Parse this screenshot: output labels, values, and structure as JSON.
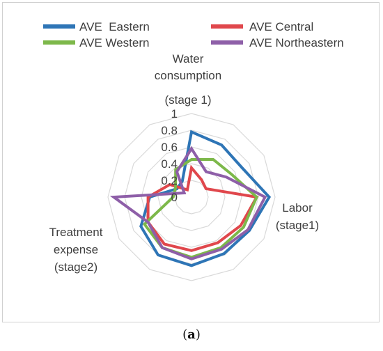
{
  "chart_data": {
    "type": "radar",
    "title": "",
    "categories": [
      "Water consumption (stage 1)",
      "",
      "",
      "Labor (stage1)",
      "",
      "",
      "",
      "",
      "",
      "Treatment expense (stage2)",
      "",
      ""
    ],
    "axis_labels": {
      "top": [
        "Water",
        "consumption",
        "(stage 1)"
      ],
      "right": [
        "Labor",
        "(stage1)"
      ],
      "left": [
        "Treatment",
        "expense",
        "(stage2)"
      ]
    },
    "rlim": [
      0,
      1
    ],
    "r_ticks": [
      "0",
      "0.2",
      "0.4",
      "0.6",
      "0.8",
      "1"
    ],
    "r_tick_values": [
      0,
      0.2,
      0.4,
      0.6,
      0.8,
      1
    ],
    "grid": true,
    "legend_position": "top",
    "series": [
      {
        "name": "AVE  Eastern",
        "color": "#2E75B6",
        "values": [
          0.78,
          0.72,
          0.7,
          0.93,
          0.8,
          0.78,
          0.82,
          0.8,
          0.7,
          0.5,
          0.2,
          0.22
        ]
      },
      {
        "name": "AVE Central",
        "color": "#E0474C",
        "values": [
          0.35,
          0.24,
          0.2,
          0.78,
          0.68,
          0.63,
          0.64,
          0.65,
          0.6,
          0.52,
          0.3,
          0.1
        ]
      },
      {
        "name": "AVE Western",
        "color": "#7DB84A",
        "values": [
          0.45,
          0.52,
          0.55,
          0.78,
          0.72,
          0.7,
          0.72,
          0.7,
          0.65,
          0.22,
          0.22,
          0.38
        ]
      },
      {
        "name": "AVE Northeastern",
        "color": "#8E5FA8",
        "values": [
          0.58,
          0.35,
          0.48,
          0.88,
          0.78,
          0.72,
          0.74,
          0.7,
          0.6,
          0.93,
          0.1,
          0.35
        ]
      }
    ]
  },
  "caption": {
    "label": "a"
  }
}
